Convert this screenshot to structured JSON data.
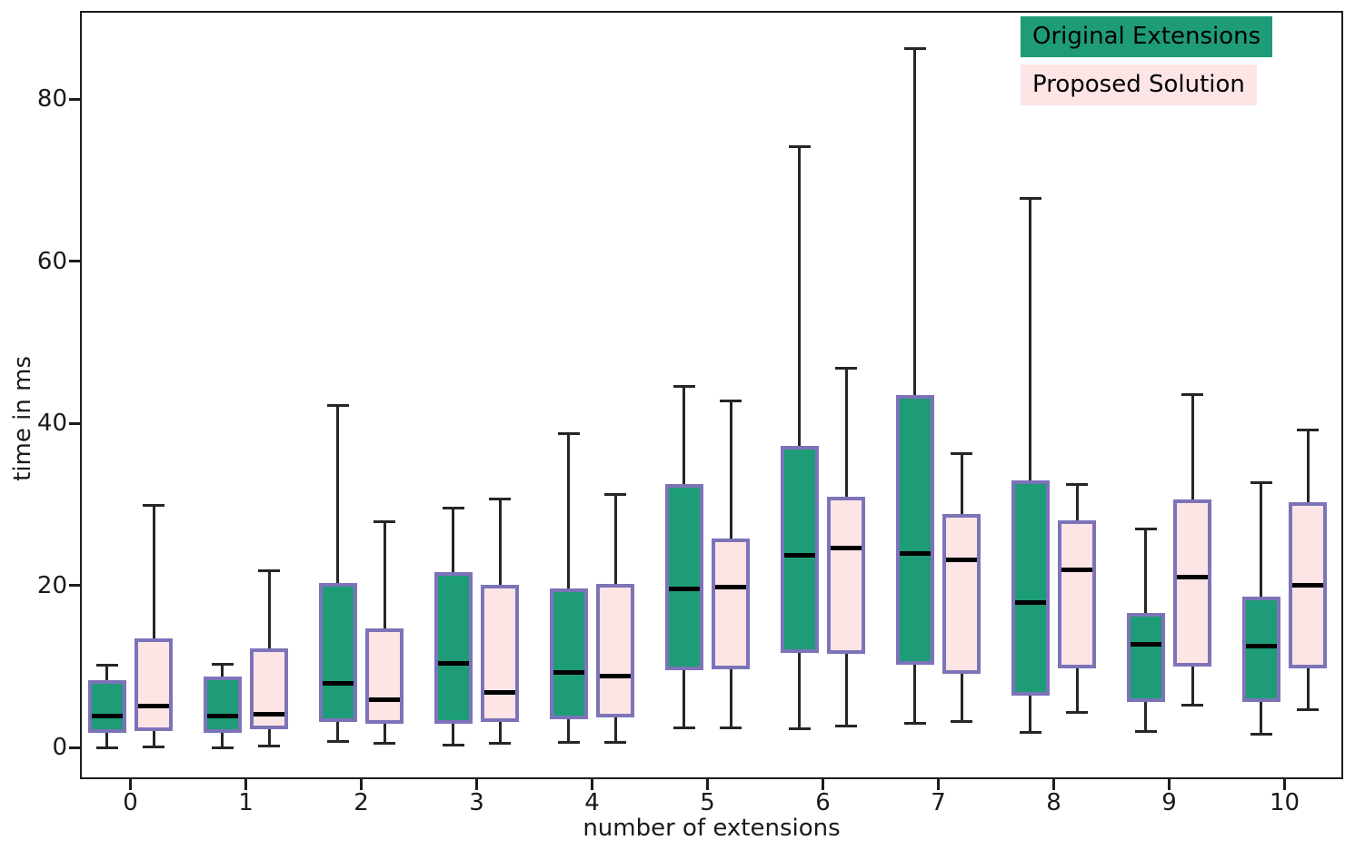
{
  "figure_title": "",
  "chart_data": {
    "type": "boxplot",
    "title": "",
    "xlabel": "number of extensions",
    "ylabel": "time in ms",
    "x_tick_labels": [
      "0",
      "1",
      "2",
      "3",
      "4",
      "5",
      "6",
      "7",
      "8",
      "9",
      "10"
    ],
    "y_ticks": [
      0,
      20,
      40,
      60,
      80
    ],
    "ylim": [
      -4,
      91
    ],
    "grid": false,
    "legend_position": "upper right",
    "series": [
      {
        "name": "Original Extensions",
        "fill_color": "#1e9c78",
        "boxes": [
          {
            "whislo": 0.0,
            "q1": 1.8,
            "med": 3.9,
            "q3": 8.3,
            "whishi": 10.1
          },
          {
            "whislo": 0.0,
            "q1": 1.8,
            "med": 3.9,
            "q3": 8.7,
            "whishi": 10.3
          },
          {
            "whislo": 0.7,
            "q1": 3.1,
            "med": 7.9,
            "q3": 20.3,
            "whishi": 42.2
          },
          {
            "whislo": 0.3,
            "q1": 2.9,
            "med": 10.4,
            "q3": 21.6,
            "whishi": 29.5
          },
          {
            "whislo": 0.6,
            "q1": 3.5,
            "med": 9.2,
            "q3": 19.6,
            "whishi": 38.7
          },
          {
            "whislo": 2.4,
            "q1": 9.5,
            "med": 19.5,
            "q3": 32.5,
            "whishi": 44.5
          },
          {
            "whislo": 2.3,
            "q1": 11.7,
            "med": 23.7,
            "q3": 37.2,
            "whishi": 74.1
          },
          {
            "whislo": 3.0,
            "q1": 10.2,
            "med": 23.9,
            "q3": 43.5,
            "whishi": 86.2
          },
          {
            "whislo": 1.8,
            "q1": 6.4,
            "med": 17.9,
            "q3": 32.9,
            "whishi": 67.7
          },
          {
            "whislo": 2.0,
            "q1": 5.6,
            "med": 12.7,
            "q3": 16.6,
            "whishi": 26.9
          },
          {
            "whislo": 1.6,
            "q1": 5.6,
            "med": 12.5,
            "q3": 18.6,
            "whishi": 32.7
          }
        ]
      },
      {
        "name": "Proposed Solution",
        "fill_color": "#fde4e5",
        "boxes": [
          {
            "whislo": 0.1,
            "q1": 2.0,
            "med": 5.1,
            "q3": 13.5,
            "whishi": 29.9
          },
          {
            "whislo": 0.2,
            "q1": 2.2,
            "med": 4.1,
            "q3": 12.2,
            "whishi": 21.8
          },
          {
            "whislo": 0.5,
            "q1": 2.9,
            "med": 5.9,
            "q3": 14.7,
            "whishi": 27.8
          },
          {
            "whislo": 0.5,
            "q1": 3.1,
            "med": 6.8,
            "q3": 20.1,
            "whishi": 30.6
          },
          {
            "whislo": 0.6,
            "q1": 3.7,
            "med": 8.8,
            "q3": 20.2,
            "whishi": 31.2
          },
          {
            "whislo": 2.4,
            "q1": 9.6,
            "med": 19.8,
            "q3": 25.8,
            "whishi": 42.8
          },
          {
            "whislo": 2.6,
            "q1": 11.5,
            "med": 24.6,
            "q3": 30.9,
            "whishi": 46.8
          },
          {
            "whislo": 3.2,
            "q1": 9.1,
            "med": 23.1,
            "q3": 28.8,
            "whishi": 36.3
          },
          {
            "whislo": 4.3,
            "q1": 9.7,
            "med": 21.9,
            "q3": 28.0,
            "whishi": 32.4
          },
          {
            "whislo": 5.2,
            "q1": 10.0,
            "med": 21.0,
            "q3": 30.6,
            "whishi": 43.5
          },
          {
            "whislo": 4.7,
            "q1": 9.7,
            "med": 20.0,
            "q3": 30.3,
            "whishi": 39.2
          }
        ]
      }
    ]
  },
  "style": {
    "box_edge_color": "#7d73b8",
    "median_color": "#000000",
    "whisker_color": "#262626",
    "axis_color": "#1c1c1c",
    "background": "#ffffff"
  }
}
